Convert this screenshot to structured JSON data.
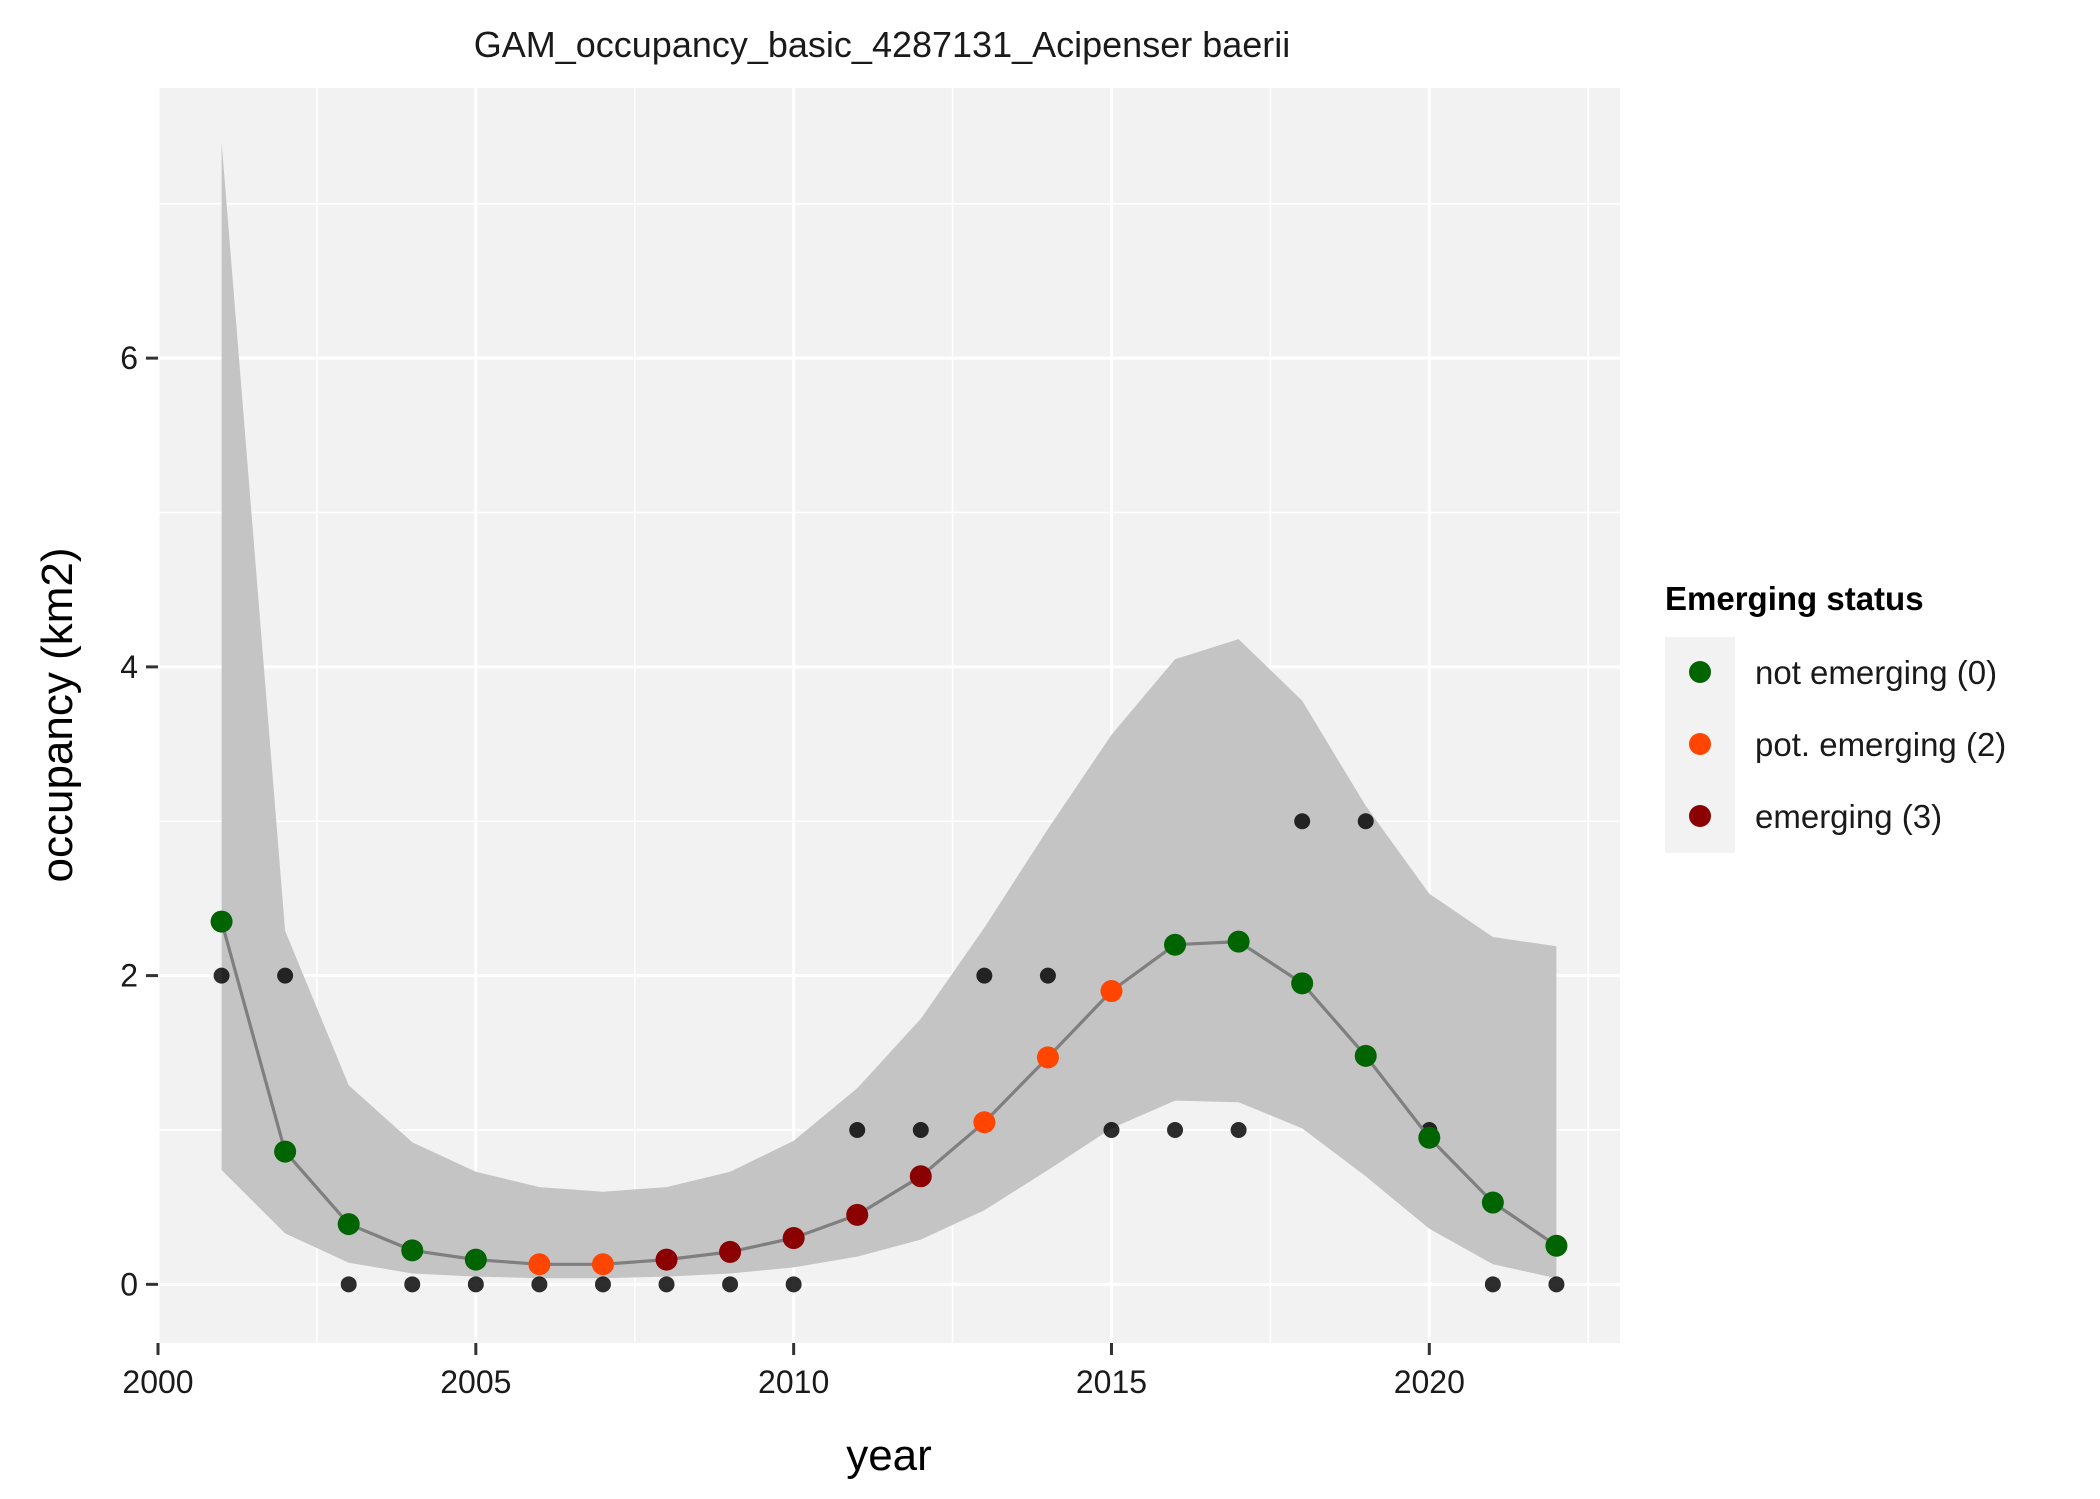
{
  "chart_data": {
    "type": "line",
    "title": "GAM_occupancy_basic_4287131_Acipenser baerii",
    "xlabel": "year",
    "ylabel": "occupancy (km2)",
    "xlim": [
      2000,
      2023
    ],
    "ylim": [
      -0.38,
      7.75
    ],
    "x_ticks": [
      2000,
      2005,
      2010,
      2015,
      2020
    ],
    "y_ticks": [
      0,
      2,
      4,
      6
    ],
    "grid": true,
    "legend": {
      "title": "Emerging status",
      "position": "right",
      "entries": [
        {
          "label": "not emerging (0)",
          "color": "#006400"
        },
        {
          "label": "pot. emerging (2)",
          "color": "#ff4500"
        },
        {
          "label": "emerging (3)",
          "color": "#8b0000"
        }
      ]
    },
    "colors": {
      "not_emerging": "#006400",
      "pot_emerging": "#ff4500",
      "emerging": "#8b0000",
      "observed": "#000000",
      "fit_line": "#7f7f7f",
      "ribbon": "#c4c4c4",
      "panel": "#f2f2f2",
      "grid": "#ffffff"
    },
    "observed": {
      "x": [
        2001,
        2002,
        2003,
        2004,
        2005,
        2006,
        2007,
        2008,
        2009,
        2010,
        2011,
        2012,
        2013,
        2014,
        2015,
        2016,
        2017,
        2018,
        2019,
        2020,
        2021,
        2022
      ],
      "y": [
        2,
        2,
        0,
        0,
        0,
        0,
        0,
        0,
        0,
        0,
        1,
        1,
        2,
        2,
        1,
        1,
        1,
        3,
        3,
        1,
        0,
        0
      ]
    },
    "fitted": {
      "x": [
        2001,
        2002,
        2003,
        2004,
        2005,
        2006,
        2007,
        2008,
        2009,
        2010,
        2011,
        2012,
        2013,
        2014,
        2015,
        2016,
        2017,
        2018,
        2019,
        2020,
        2021,
        2022
      ],
      "y": [
        2.35,
        0.86,
        0.39,
        0.22,
        0.16,
        0.13,
        0.13,
        0.16,
        0.21,
        0.3,
        0.45,
        0.7,
        1.05,
        1.47,
        1.9,
        2.2,
        2.22,
        1.95,
        1.48,
        0.95,
        0.53,
        0.25
      ],
      "status": [
        0,
        0,
        0,
        0,
        0,
        2,
        2,
        3,
        3,
        3,
        3,
        3,
        2,
        2,
        2,
        0,
        0,
        0,
        0,
        0,
        0,
        0
      ],
      "lower": [
        0.74,
        0.33,
        0.14,
        0.07,
        0.05,
        0.04,
        0.04,
        0.05,
        0.07,
        0.11,
        0.18,
        0.29,
        0.48,
        0.74,
        1.01,
        1.19,
        1.18,
        1.01,
        0.7,
        0.36,
        0.13,
        0.04
      ],
      "upper": [
        7.4,
        2.29,
        1.29,
        0.92,
        0.73,
        0.63,
        0.6,
        0.63,
        0.73,
        0.93,
        1.27,
        1.72,
        2.31,
        2.95,
        3.56,
        4.05,
        4.18,
        3.78,
        3.1,
        2.53,
        2.25,
        2.19
      ]
    }
  }
}
